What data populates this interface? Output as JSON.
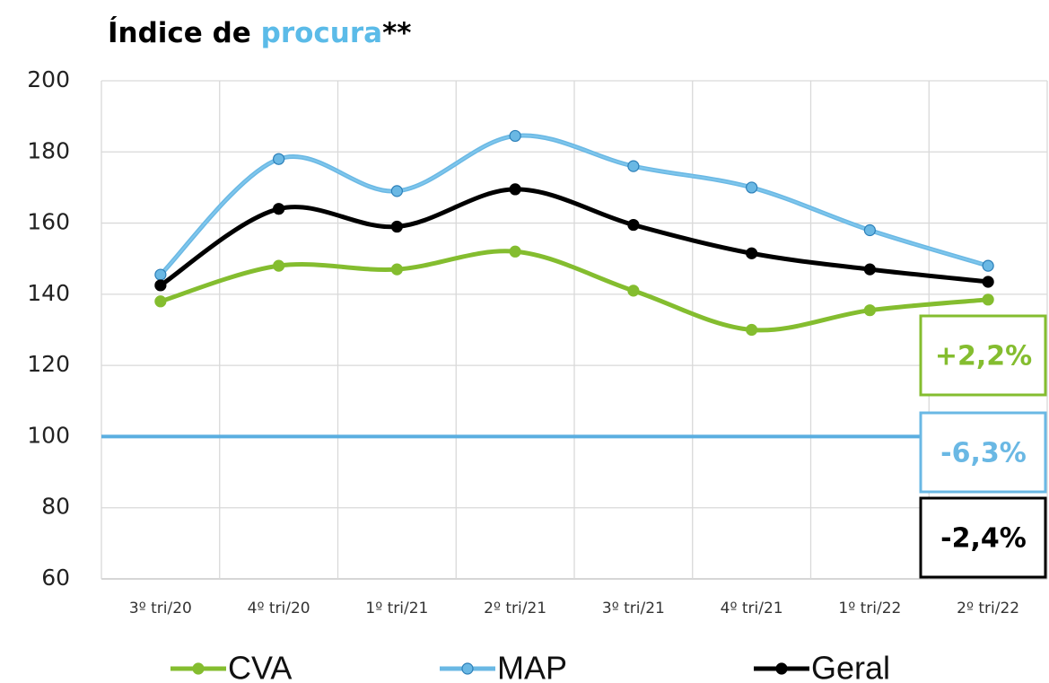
{
  "chart_data": {
    "type": "line",
    "title_parts": [
      {
        "text": "Índice de ",
        "color": "#000000"
      },
      {
        "text": "procura",
        "color": "#5bbbe8"
      },
      {
        "text": "**",
        "color": "#000000"
      }
    ],
    "categories": [
      "3º tri/20",
      "4º tri/20",
      "1º tri/21",
      "2º tri/21",
      "3º tri/21",
      "4º tri/21",
      "1º tri/22",
      "2º tri/22"
    ],
    "series": [
      {
        "name": "CVA",
        "color": "#84bd2f",
        "marker_fill": "#84bd2f",
        "values": [
          138,
          148,
          147,
          152,
          141,
          130,
          135.5,
          138.5
        ]
      },
      {
        "name": "MAP",
        "color": "#6ab8e4",
        "marker_fill": "#6ab8e4",
        "values": [
          145.5,
          178,
          169,
          184.5,
          176,
          170,
          158,
          148
        ]
      },
      {
        "name": "Geral",
        "color": "#000000",
        "marker_fill": "#000000",
        "values": [
          142.5,
          164,
          159,
          169.5,
          159.5,
          151.5,
          147,
          143.5
        ]
      }
    ],
    "ylim": [
      60,
      200
    ],
    "yticks": [
      60,
      80,
      100,
      120,
      140,
      160,
      180,
      200
    ],
    "grid": true,
    "reference_line": {
      "value": 100,
      "color": "#5aaee0"
    },
    "annotations": [
      {
        "text": "+2,2%",
        "color": "#84bd2f"
      },
      {
        "text": "-6,3%",
        "color": "#6ab8e4"
      },
      {
        "text": "-2,4%",
        "color": "#000000"
      }
    ]
  }
}
